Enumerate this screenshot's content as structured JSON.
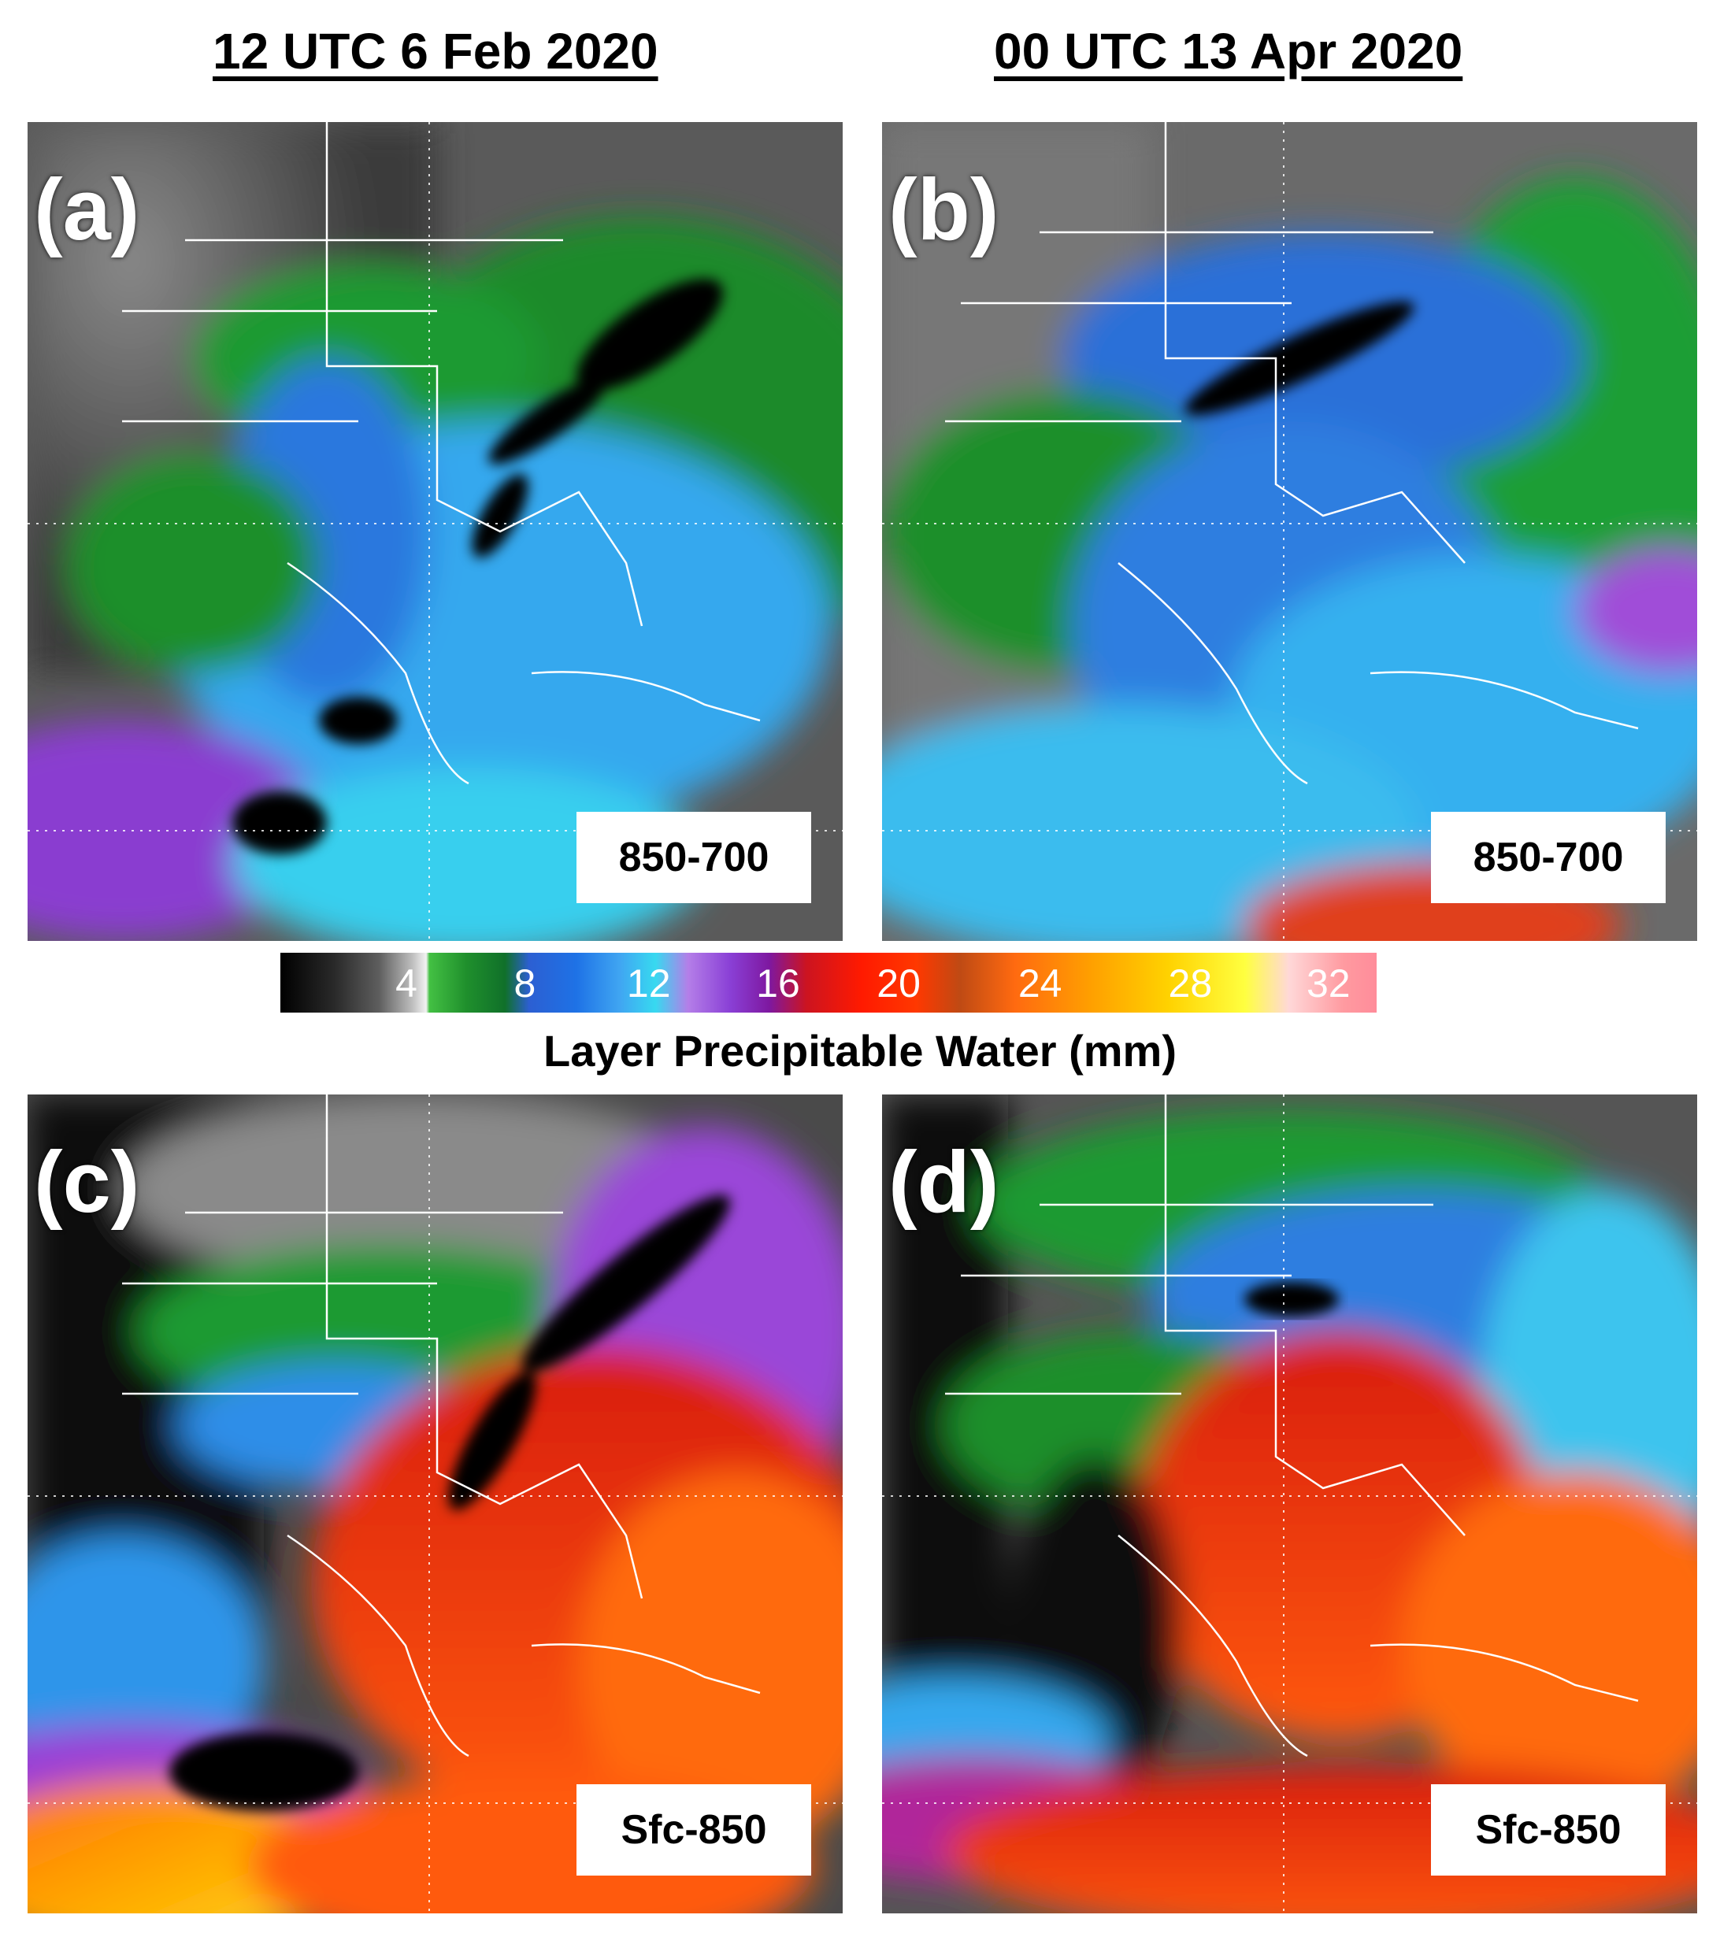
{
  "titles": {
    "left": "12 UTC 6 Feb 2020",
    "right": "00 UTC 13 Apr 2020"
  },
  "panels": [
    {
      "letter": "(a)",
      "layer": "850-700"
    },
    {
      "letter": "(b)",
      "layer": "850-700"
    },
    {
      "letter": "(c)",
      "layer": "Sfc-850"
    },
    {
      "letter": "(d)",
      "layer": "Sfc-850"
    }
  ],
  "colorbar": {
    "ticks": [
      "4",
      "8",
      "12",
      "16",
      "20",
      "24",
      "28",
      "32"
    ],
    "label": "Layer Precipitable Water (mm)",
    "units": "mm",
    "range": [
      0,
      34
    ]
  }
}
